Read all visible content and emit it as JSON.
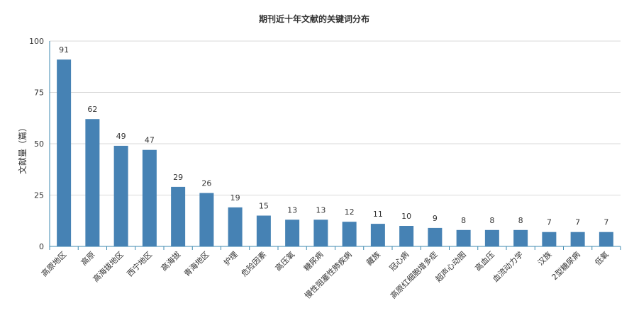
{
  "chart_data": {
    "type": "bar",
    "title": "期刊近十年文献的关键词分布",
    "xlabel": "",
    "ylabel": "文献量（篇）",
    "ylim": [
      0,
      100
    ],
    "yticks": [
      0,
      25,
      50,
      75,
      100
    ],
    "grid": true,
    "legend": "none",
    "categories": [
      "高原地区",
      "高原",
      "高海拔地区",
      "西宁地区",
      "高海拔",
      "青海地区",
      "护理",
      "危险因素",
      "高压氧",
      "糖尿病",
      "慢性阻塞性肺疾病",
      "藏族",
      "冠心病",
      "高原红细胞增多症",
      "超声心动图",
      "高血压",
      "血流动力学",
      "汉族",
      "2型糖尿病",
      "低氧"
    ],
    "values": [
      91,
      62,
      49,
      47,
      29,
      26,
      19,
      15,
      13,
      13,
      12,
      11,
      10,
      9,
      8,
      8,
      8,
      7,
      7,
      7
    ]
  },
  "colors": {
    "bar": "#4682b4",
    "axis": "#3e8ab0",
    "grid": "#d9d9d9",
    "text": "#333333"
  }
}
